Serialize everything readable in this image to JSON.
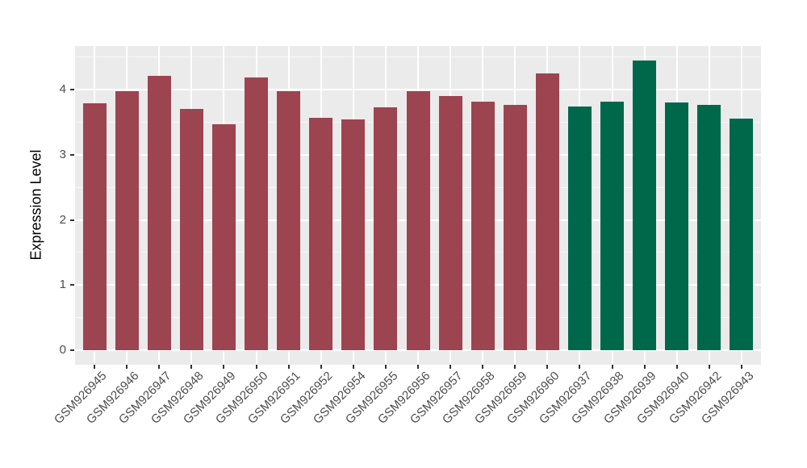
{
  "style": {
    "page_background": "#FFFFFF",
    "panel_background": "#EBEBEB",
    "grid_major_color": "#FFFFFF",
    "grid_minor_color": "rgba(255,255,255,0.6)",
    "tick_mark_color": "#333333",
    "axis_text_color": "#4D4D4D",
    "axis_title_color": "#000000"
  },
  "chart_data": {
    "type": "bar",
    "title": "",
    "xlabel": "",
    "ylabel": "Expression Level",
    "ylim": [
      0,
      4.67
    ],
    "yticks": [
      "0",
      "1",
      "2",
      "3",
      "4"
    ],
    "grid": "white major + minor horizontal lines and major vertical lines on gray panel",
    "legend_position": "none",
    "x_tick_angle_deg": 45,
    "groups": [
      {
        "name": "red-group",
        "color": "#9D4451"
      },
      {
        "name": "green-group",
        "color": "#00684A"
      }
    ],
    "bars": [
      {
        "label": "GSM926945",
        "value": 3.79,
        "group": 0
      },
      {
        "label": "GSM926946",
        "value": 3.97,
        "group": 0
      },
      {
        "label": "GSM926947",
        "value": 4.21,
        "group": 0
      },
      {
        "label": "GSM926948",
        "value": 3.7,
        "group": 0
      },
      {
        "label": "GSM926949",
        "value": 3.47,
        "group": 0
      },
      {
        "label": "GSM926950",
        "value": 4.19,
        "group": 0
      },
      {
        "label": "GSM926951",
        "value": 3.98,
        "group": 0
      },
      {
        "label": "GSM926952",
        "value": 3.57,
        "group": 0
      },
      {
        "label": "GSM926954",
        "value": 3.54,
        "group": 0
      },
      {
        "label": "GSM926955",
        "value": 3.73,
        "group": 0
      },
      {
        "label": "GSM926956",
        "value": 3.98,
        "group": 0
      },
      {
        "label": "GSM926957",
        "value": 3.9,
        "group": 0
      },
      {
        "label": "GSM926958",
        "value": 3.81,
        "group": 0
      },
      {
        "label": "GSM926959",
        "value": 3.77,
        "group": 0
      },
      {
        "label": "GSM926960",
        "value": 4.25,
        "group": 0
      },
      {
        "label": "GSM926937",
        "value": 3.74,
        "group": 1
      },
      {
        "label": "GSM926938",
        "value": 3.81,
        "group": 1
      },
      {
        "label": "GSM926939",
        "value": 4.45,
        "group": 1
      },
      {
        "label": "GSM926940",
        "value": 3.8,
        "group": 1
      },
      {
        "label": "GSM926942",
        "value": 3.77,
        "group": 1
      },
      {
        "label": "GSM926943",
        "value": 3.55,
        "group": 1
      }
    ]
  }
}
